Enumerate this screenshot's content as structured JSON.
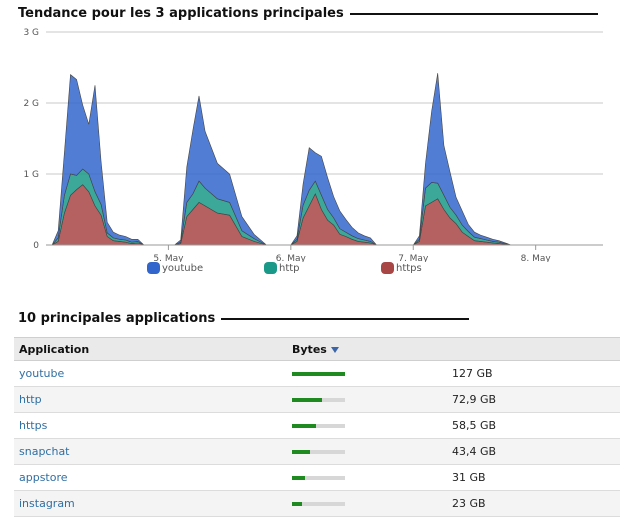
{
  "trend": {
    "title": "Tendance pour les 3 applications principales",
    "legend": [
      {
        "name": "youtube",
        "color": "#3366cc"
      },
      {
        "name": "http",
        "color": "#1a9988"
      },
      {
        "name": "https",
        "color": "#a84545"
      }
    ]
  },
  "chart_data": {
    "type": "area",
    "stacked": true,
    "title": "Tendance pour les 3 applications principales",
    "ylabel": "",
    "xlabel": "",
    "y_ticks": [
      "0",
      "1 G",
      "2 G",
      "3 G"
    ],
    "ylim": [
      0,
      3
    ],
    "y_unit": "G",
    "x_ticks": [
      "5. May",
      "6. May",
      "7. May",
      "8. May"
    ],
    "xlim": [
      4.0,
      8.55
    ],
    "grid": "horizontal",
    "legend_position": "bottom",
    "x": [
      4.05,
      4.1,
      4.15,
      4.2,
      4.25,
      4.3,
      4.35,
      4.4,
      4.45,
      4.5,
      4.55,
      4.6,
      4.65,
      4.7,
      4.75,
      4.8,
      4.85,
      4.9,
      4.95,
      5.0,
      5.05,
      5.1,
      5.15,
      5.2,
      5.25,
      5.3,
      5.4,
      5.5,
      5.6,
      5.7,
      5.8,
      5.9,
      6.0,
      6.05,
      6.1,
      6.15,
      6.2,
      6.25,
      6.3,
      6.35,
      6.4,
      6.45,
      6.5,
      6.55,
      6.6,
      6.65,
      6.7,
      6.75,
      6.8,
      6.9,
      7.0,
      7.05,
      7.1,
      7.15,
      7.2,
      7.25,
      7.3,
      7.35,
      7.4,
      7.45,
      7.5,
      7.55,
      7.6,
      7.65,
      7.7,
      7.8,
      7.9,
      8.0,
      8.05,
      8.1,
      8.15,
      8.2,
      8.25,
      8.3,
      8.35,
      8.4,
      8.45,
      8.5,
      8.55
    ],
    "series": [
      {
        "name": "https",
        "color": "#a84545",
        "values": [
          0.0,
          0.05,
          0.45,
          0.7,
          0.78,
          0.85,
          0.75,
          0.55,
          0.42,
          0.12,
          0.06,
          0.05,
          0.04,
          0.02,
          0.03,
          0.0,
          0.0,
          0.0,
          0.0,
          0.0,
          0.0,
          0.02,
          0.4,
          0.5,
          0.6,
          0.55,
          0.45,
          0.42,
          0.12,
          0.05,
          0.0,
          0.0,
          0.0,
          0.05,
          0.38,
          0.55,
          0.72,
          0.5,
          0.35,
          0.28,
          0.15,
          0.12,
          0.08,
          0.05,
          0.04,
          0.03,
          0.0,
          0.0,
          0.0,
          0.0,
          0.0,
          0.05,
          0.55,
          0.6,
          0.65,
          0.5,
          0.38,
          0.3,
          0.18,
          0.12,
          0.06,
          0.05,
          0.04,
          0.03,
          0.02,
          0.0,
          0.0,
          0.0,
          0.0,
          0.0,
          0.0,
          0.0,
          0.0,
          0.0,
          0.0,
          0.0,
          0.0,
          0.0,
          0.0
        ]
      },
      {
        "name": "http",
        "color": "#1a9988",
        "values": [
          0.0,
          0.05,
          0.25,
          0.3,
          0.2,
          0.22,
          0.25,
          0.2,
          0.15,
          0.05,
          0.04,
          0.03,
          0.03,
          0.02,
          0.02,
          0.0,
          0.0,
          0.0,
          0.0,
          0.0,
          0.0,
          0.02,
          0.2,
          0.22,
          0.3,
          0.25,
          0.2,
          0.18,
          0.08,
          0.04,
          0.0,
          0.0,
          0.0,
          0.03,
          0.18,
          0.22,
          0.18,
          0.2,
          0.15,
          0.1,
          0.08,
          0.06,
          0.05,
          0.04,
          0.03,
          0.02,
          0.0,
          0.0,
          0.0,
          0.0,
          0.0,
          0.03,
          0.25,
          0.28,
          0.22,
          0.2,
          0.15,
          0.12,
          0.1,
          0.07,
          0.05,
          0.04,
          0.03,
          0.02,
          0.02,
          0.0,
          0.0,
          0.0,
          0.0,
          0.0,
          0.0,
          0.0,
          0.0,
          0.0,
          0.0,
          0.0,
          0.0,
          0.0,
          0.0
        ]
      },
      {
        "name": "youtube",
        "color": "#3366cc",
        "values": [
          0.0,
          0.1,
          0.6,
          1.4,
          1.35,
          0.9,
          0.7,
          1.5,
          0.6,
          0.15,
          0.08,
          0.06,
          0.05,
          0.04,
          0.03,
          0.0,
          0.0,
          0.0,
          0.0,
          0.0,
          0.0,
          0.03,
          0.5,
          0.9,
          1.2,
          0.8,
          0.5,
          0.4,
          0.2,
          0.06,
          0.0,
          0.0,
          0.0,
          0.05,
          0.3,
          0.6,
          0.4,
          0.55,
          0.45,
          0.3,
          0.25,
          0.18,
          0.12,
          0.08,
          0.06,
          0.05,
          0.0,
          0.0,
          0.0,
          0.0,
          0.0,
          0.05,
          0.35,
          1.0,
          1.55,
          0.7,
          0.5,
          0.25,
          0.2,
          0.1,
          0.07,
          0.05,
          0.04,
          0.03,
          0.02,
          0.0,
          0.0,
          0.0,
          0.0,
          0.0,
          0.0,
          0.0,
          0.0,
          0.0,
          0.0,
          0.0,
          0.0,
          0.0,
          0.0
        ]
      }
    ]
  },
  "top_apps": {
    "title": "10 principales applications",
    "columns": {
      "application": "Application",
      "bytes": "Bytes"
    },
    "rows": [
      {
        "app": "youtube",
        "bytes": "127 GB",
        "ratio": 1.0
      },
      {
        "app": "http",
        "bytes": "72,9 GB",
        "ratio": 0.574
      },
      {
        "app": "https",
        "bytes": "58,5 GB",
        "ratio": 0.461
      },
      {
        "app": "snapchat",
        "bytes": "43,4 GB",
        "ratio": 0.342
      },
      {
        "app": "appstore",
        "bytes": "31 GB",
        "ratio": 0.244
      },
      {
        "app": "instagram",
        "bytes": "23 GB",
        "ratio": 0.181
      }
    ]
  }
}
